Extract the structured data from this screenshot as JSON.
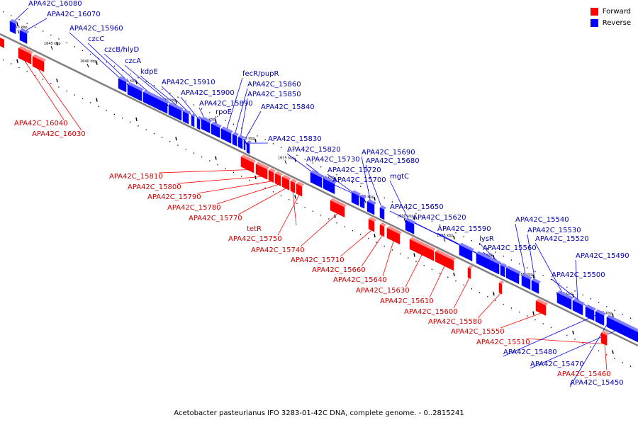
{
  "legend": {
    "forward": "Forward",
    "reverse": "Reverse"
  },
  "colors": {
    "forward": "#ff0000",
    "reverse": "#0000ff",
    "forward_label": "#cc0000",
    "reverse_label": "#0000aa",
    "axis": "#808080"
  },
  "caption": "Acetobacter pasteurianus IFO 3283-01-42C DNA, complete genome. - 0..2815241",
  "ticks": [
    "1650 kbp",
    "1645 kbp",
    "1640 kbp",
    "1635 kbp",
    "1630 kbp",
    "1625 kbp",
    "1620 kbp",
    "1615 kbp",
    "1610 kbp",
    "1605 kbp",
    "1600 kbp",
    "1595 kbp",
    "1590 kbp",
    "1585 kbp",
    "1580 kbp",
    "1575 kbp"
  ],
  "genes": [
    {
      "id": "APA42C_16080",
      "strand": "reverse"
    },
    {
      "id": "APA42C_16070",
      "strand": "reverse"
    },
    {
      "id": "APA42C_16040",
      "strand": "forward"
    },
    {
      "id": "APA42C_16030",
      "strand": "forward"
    },
    {
      "id": "APA42C_15960",
      "strand": "reverse"
    },
    {
      "id": "czcC",
      "strand": "reverse"
    },
    {
      "id": "czcB/hlyD",
      "strand": "reverse"
    },
    {
      "id": "czcA",
      "strand": "reverse"
    },
    {
      "id": "kdpE",
      "strand": "reverse"
    },
    {
      "id": "APA42C_15910",
      "strand": "reverse"
    },
    {
      "id": "APA42C_15900",
      "strand": "reverse"
    },
    {
      "id": "APA42C_15890",
      "strand": "reverse"
    },
    {
      "id": "rpoE",
      "strand": "reverse"
    },
    {
      "id": "fecR/pupR",
      "strand": "reverse"
    },
    {
      "id": "APA42C_15860",
      "strand": "reverse"
    },
    {
      "id": "APA42C_15850",
      "strand": "reverse"
    },
    {
      "id": "APA42C_15840",
      "strand": "reverse"
    },
    {
      "id": "APA42C_15830",
      "strand": "reverse"
    },
    {
      "id": "APA42C_15820",
      "strand": "reverse"
    },
    {
      "id": "APA42C_15810",
      "strand": "forward"
    },
    {
      "id": "APA42C_15800",
      "strand": "forward"
    },
    {
      "id": "APA42C_15790",
      "strand": "forward"
    },
    {
      "id": "APA42C_15780",
      "strand": "forward"
    },
    {
      "id": "APA42C_15770",
      "strand": "forward"
    },
    {
      "id": "tetR",
      "strand": "forward"
    },
    {
      "id": "APA42C_15750",
      "strand": "forward"
    },
    {
      "id": "APA42C_15740",
      "strand": "forward"
    },
    {
      "id": "APA42C_15730",
      "strand": "reverse"
    },
    {
      "id": "APA42C_15720",
      "strand": "reverse"
    },
    {
      "id": "APA42C_15700",
      "strand": "reverse"
    },
    {
      "id": "APA42C_15690",
      "strand": "reverse"
    },
    {
      "id": "APA42C_15680",
      "strand": "reverse"
    },
    {
      "id": "mgtC",
      "strand": "reverse"
    },
    {
      "id": "APA42C_15710",
      "strand": "forward"
    },
    {
      "id": "APA42C_15660",
      "strand": "forward"
    },
    {
      "id": "APA42C_15650",
      "strand": "reverse"
    },
    {
      "id": "APA42C_15640",
      "strand": "forward"
    },
    {
      "id": "APA42C_15620",
      "strand": "reverse"
    },
    {
      "id": "APA42C_15630",
      "strand": "forward"
    },
    {
      "id": "APA42C_15610",
      "strand": "forward"
    },
    {
      "id": "APA42C_15600",
      "strand": "forward"
    },
    {
      "id": "APA42C_15590",
      "strand": "reverse"
    },
    {
      "id": "lysR",
      "strand": "reverse"
    },
    {
      "id": "APA42C_15560",
      "strand": "reverse"
    },
    {
      "id": "APA42C_15580",
      "strand": "forward"
    },
    {
      "id": "APA42C_15550",
      "strand": "forward"
    },
    {
      "id": "APA42C_15540",
      "strand": "reverse"
    },
    {
      "id": "APA42C_15530",
      "strand": "reverse"
    },
    {
      "id": "APA42C_15520",
      "strand": "reverse"
    },
    {
      "id": "APA42C_15490",
      "strand": "reverse"
    },
    {
      "id": "APA42C_15500",
      "strand": "reverse"
    },
    {
      "id": "APA42C_15510",
      "strand": "forward"
    },
    {
      "id": "APA42C_15480",
      "strand": "reverse"
    },
    {
      "id": "APA42C_15470",
      "strand": "reverse"
    },
    {
      "id": "APA42C_15460",
      "strand": "forward"
    },
    {
      "id": "APA42C_15450",
      "strand": "reverse"
    }
  ]
}
